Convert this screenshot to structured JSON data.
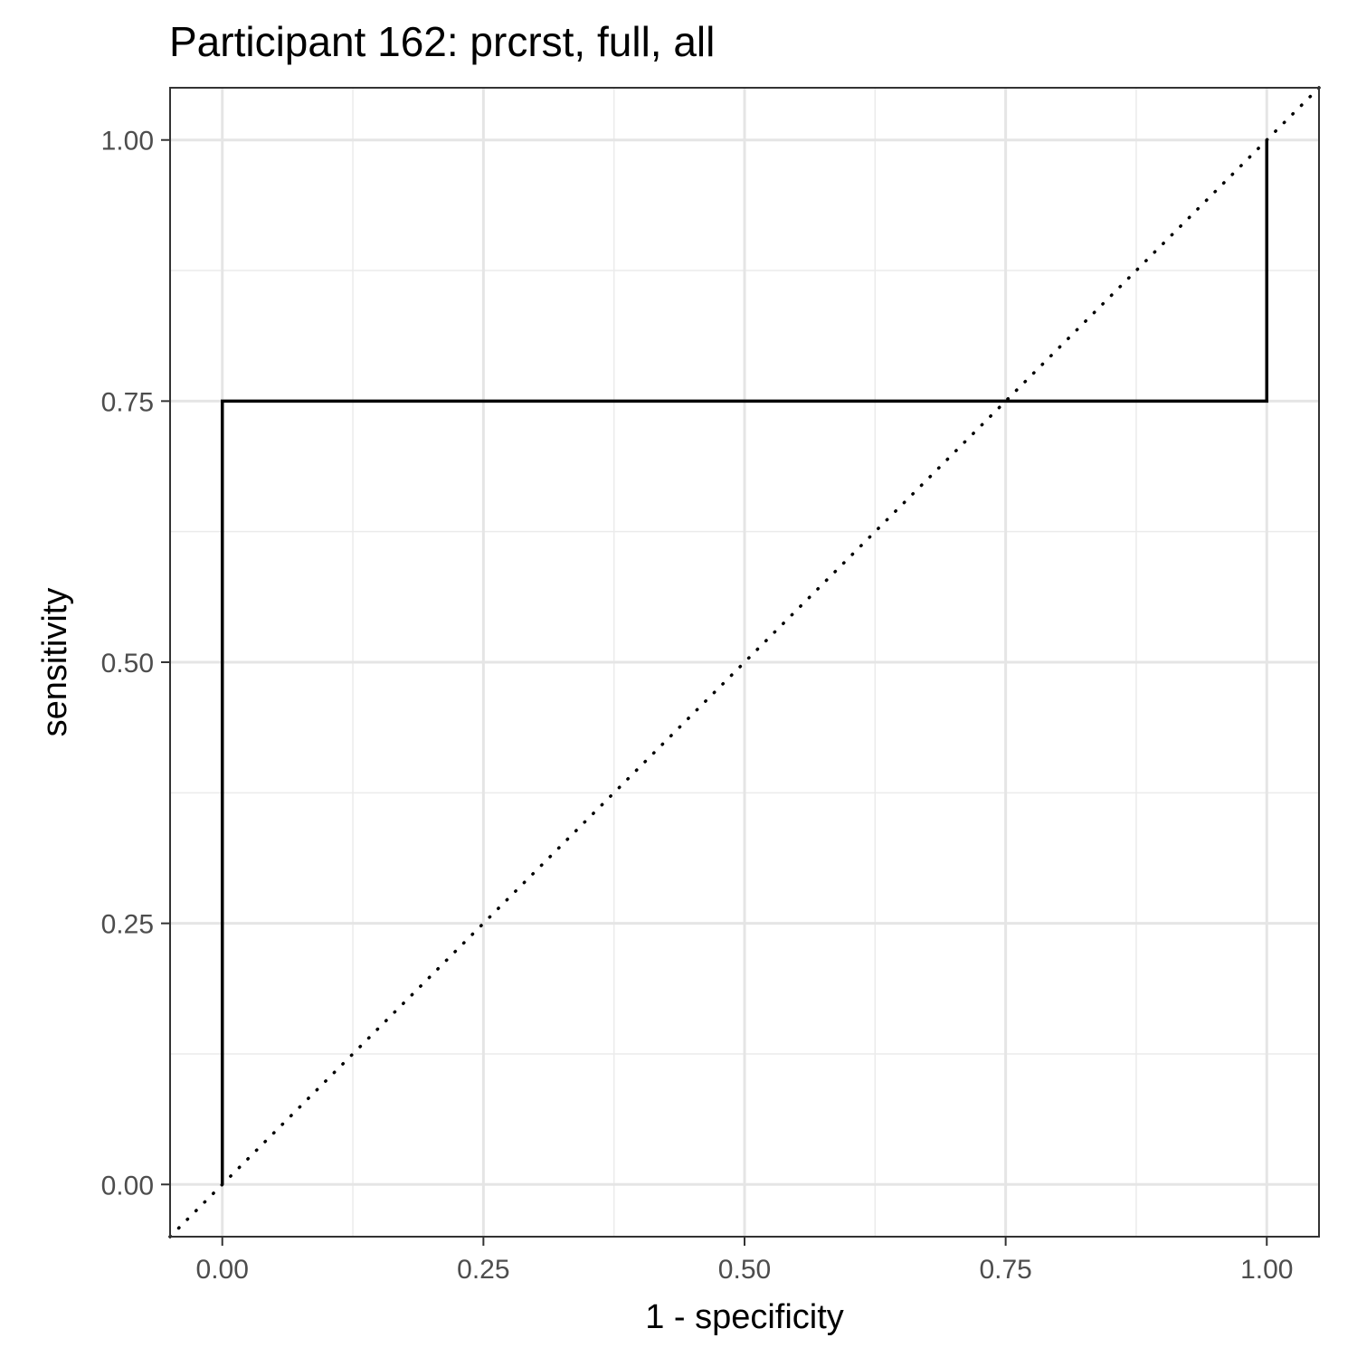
{
  "chart_data": {
    "type": "line",
    "title": "Participant 162: prcrst, full, all",
    "xlabel": "1 - specificity",
    "ylabel": "sensitivity",
    "xlim": [
      -0.05,
      1.05
    ],
    "ylim": [
      -0.05,
      1.05
    ],
    "x_ticks": [
      {
        "value": 0.0,
        "label": "0.00"
      },
      {
        "value": 0.25,
        "label": "0.25"
      },
      {
        "value": 0.5,
        "label": "0.50"
      },
      {
        "value": 0.75,
        "label": "0.75"
      },
      {
        "value": 1.0,
        "label": "1.00"
      }
    ],
    "y_ticks": [
      {
        "value": 0.0,
        "label": "0.00"
      },
      {
        "value": 0.25,
        "label": "0.25"
      },
      {
        "value": 0.5,
        "label": "0.50"
      },
      {
        "value": 0.75,
        "label": "0.75"
      },
      {
        "value": 1.0,
        "label": "1.00"
      }
    ],
    "minor_grid": [
      0.125,
      0.375,
      0.625,
      0.875
    ],
    "grid": true,
    "series": [
      {
        "style": "step",
        "color": "#000000",
        "points": [
          [
            0.0,
            0.0
          ],
          [
            0.0,
            0.75
          ],
          [
            1.0,
            0.75
          ],
          [
            1.0,
            1.0
          ]
        ]
      }
    ],
    "reference_line": {
      "style": "dotted",
      "color": "#000000",
      "slope": 1,
      "intercept": 0
    }
  }
}
